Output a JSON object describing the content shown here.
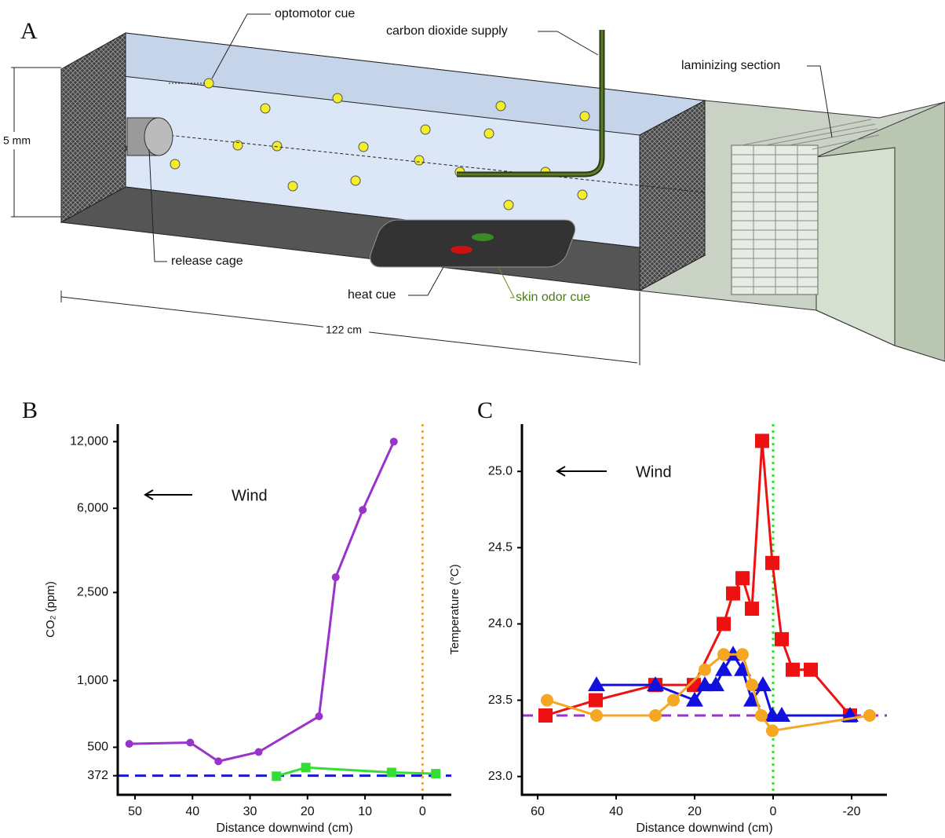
{
  "diagram": {
    "panel_label": "A",
    "labels": [
      "optomotor cue",
      "carbon dioxide supply",
      "laminizing section",
      "5 mm",
      "release cage",
      "heat cue",
      "skin odor cue",
      "122 cm"
    ]
  },
  "chart_data": [
    {
      "type": "line",
      "label": "B",
      "annotation": "Wind",
      "x_label": "Distance downwind (cm)",
      "y_label": "CO₂ (ppm)",
      "log_y": true,
      "xlim": [
        53,
        -5
      ],
      "ylim": [
        305,
        14400
      ],
      "xticks": [
        50,
        40,
        30,
        20,
        10,
        0
      ],
      "yticks": [
        372,
        500,
        {
          "value": 1000,
          "label": "1,000"
        },
        {
          "value": 2500,
          "label": "2,500"
        },
        {
          "value": 6000,
          "label": "6,000"
        },
        {
          "value": 12000,
          "label": "12,000"
        }
      ],
      "series": [
        {
          "color": "#9933cc",
          "marker": "circle",
          "x": [
            51,
            40.4,
            35.5,
            28.5,
            18,
            15.1,
            10.4,
            5
          ],
          "values": [
            518,
            525,
            432,
            476,
            690,
            2930,
            5900,
            12000
          ]
        },
        {
          "color": "#33dd33",
          "marker": "square",
          "x": [
            25.4,
            20.3,
            5.4,
            -2.3
          ],
          "values": [
            370,
            405,
            385,
            380
          ]
        }
      ],
      "reference_lines": [
        {
          "axis": "y",
          "value": 372,
          "color": "#1a1acc",
          "style": "dashed"
        },
        {
          "axis": "x",
          "value": 0,
          "color": "#f5a623",
          "style": "dotted"
        }
      ]
    },
    {
      "type": "line",
      "label": "C",
      "annotation": "Wind",
      "x_label": "Distance downwind (cm)",
      "y_label": "Temperature (°C)",
      "log_y": false,
      "xlim": [
        64,
        -29
      ],
      "ylim": [
        22.88,
        25.31
      ],
      "xticks": [
        60,
        40,
        20,
        0,
        -20
      ],
      "yticks": [
        {
          "value": 23,
          "label": "23.0"
        },
        23.5,
        {
          "value": 24,
          "label": "24.0"
        },
        24.5,
        {
          "value": 25,
          "label": "25.0"
        }
      ],
      "series": [
        {
          "color": "#ee1111",
          "marker": "square",
          "x": [
            58,
            45.2,
            30,
            20.2,
            12.6,
            10.2,
            7.8,
            5.4,
            2.8,
            0.2,
            -2.2,
            -5,
            -9.6,
            -19.6
          ],
          "values": [
            23.4,
            23.5,
            23.6,
            23.6,
            24.0,
            24.2,
            24.3,
            24.1,
            25.2,
            24.4,
            23.9,
            23.7,
            23.7,
            23.4
          ]
        },
        {
          "color": "#1111dd",
          "marker": "triangle",
          "x": [
            45,
            30,
            20,
            17.4,
            14.6,
            12.6,
            10.2,
            7.8,
            5.4,
            2.6,
            0.2,
            -2.2,
            -19.6
          ],
          "values": [
            23.6,
            23.6,
            23.5,
            23.6,
            23.6,
            23.7,
            23.8,
            23.7,
            23.5,
            23.6,
            23.4,
            23.4,
            23.4
          ]
        },
        {
          "color": "#f5a623",
          "marker": "circle",
          "x": [
            57.6,
            45,
            30,
            25.4,
            17.4,
            12.6,
            7.8,
            5.4,
            3,
            0.2,
            -24.6
          ],
          "values": [
            23.5,
            23.4,
            23.4,
            23.5,
            23.7,
            23.8,
            23.8,
            23.6,
            23.4,
            23.3,
            23.4
          ]
        }
      ],
      "reference_lines": [
        {
          "axis": "y",
          "value": 23.4,
          "color": "#9933cc",
          "style": "dashed"
        },
        {
          "axis": "x",
          "value": 0,
          "color": "#33dd33",
          "style": "dotted"
        }
      ]
    }
  ]
}
